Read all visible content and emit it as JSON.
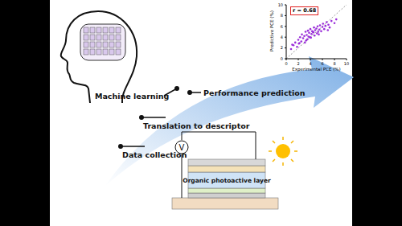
{
  "diagram": {
    "steps": [
      "Data collection",
      "Translation to descriptor",
      "Machine learning",
      "Performance prediction"
    ],
    "device": {
      "layer_label": "Organic photoactive layer",
      "meter_label": "V"
    }
  },
  "chart_data": {
    "type": "scatter",
    "annotation": "r = 0.68",
    "x_label": "Experimental PCE (%)",
    "y_label": "Predictive PCE (%)",
    "xlim": [
      0,
      10
    ],
    "ylim": [
      0,
      10
    ],
    "xticks": [
      0,
      2,
      4,
      6,
      8,
      10
    ],
    "yticks": [
      0,
      2,
      4,
      6,
      8,
      10
    ],
    "color": "#9b30d9",
    "marker": "circle",
    "x": [
      1.2,
      1.5,
      1.8,
      2.0,
      2.1,
      2.3,
      2.5,
      2.6,
      2.8,
      3.0,
      3.1,
      3.2,
      3.4,
      3.5,
      3.6,
      3.8,
      3.9,
      4.0,
      4.1,
      4.2,
      4.3,
      4.5,
      4.6,
      4.7,
      4.8,
      5.0,
      5.1,
      5.2,
      5.3,
      5.5,
      5.6,
      5.8,
      6.0,
      6.1,
      6.3,
      6.5,
      6.7,
      7.0,
      7.2,
      7.5,
      8.0,
      8.3,
      2.2,
      3.3,
      4.4,
      5.4,
      0.8,
      1.0,
      6.9,
      3.7
    ],
    "y": [
      2.5,
      3.0,
      2.2,
      3.5,
      2.8,
      4.0,
      3.2,
      4.5,
      3.8,
      4.2,
      3.0,
      5.0,
      4.4,
      3.6,
      5.2,
      4.8,
      4.0,
      5.5,
      3.9,
      4.6,
      5.1,
      4.9,
      5.8,
      4.3,
      5.3,
      5.6,
      4.7,
      6.0,
      5.0,
      5.4,
      6.2,
      5.1,
      5.9,
      6.5,
      5.5,
      6.1,
      6.8,
      6.3,
      5.8,
      7.0,
      6.6,
      7.3,
      2.9,
      3.4,
      5.0,
      4.5,
      1.8,
      2.6,
      5.3,
      4.1
    ]
  }
}
